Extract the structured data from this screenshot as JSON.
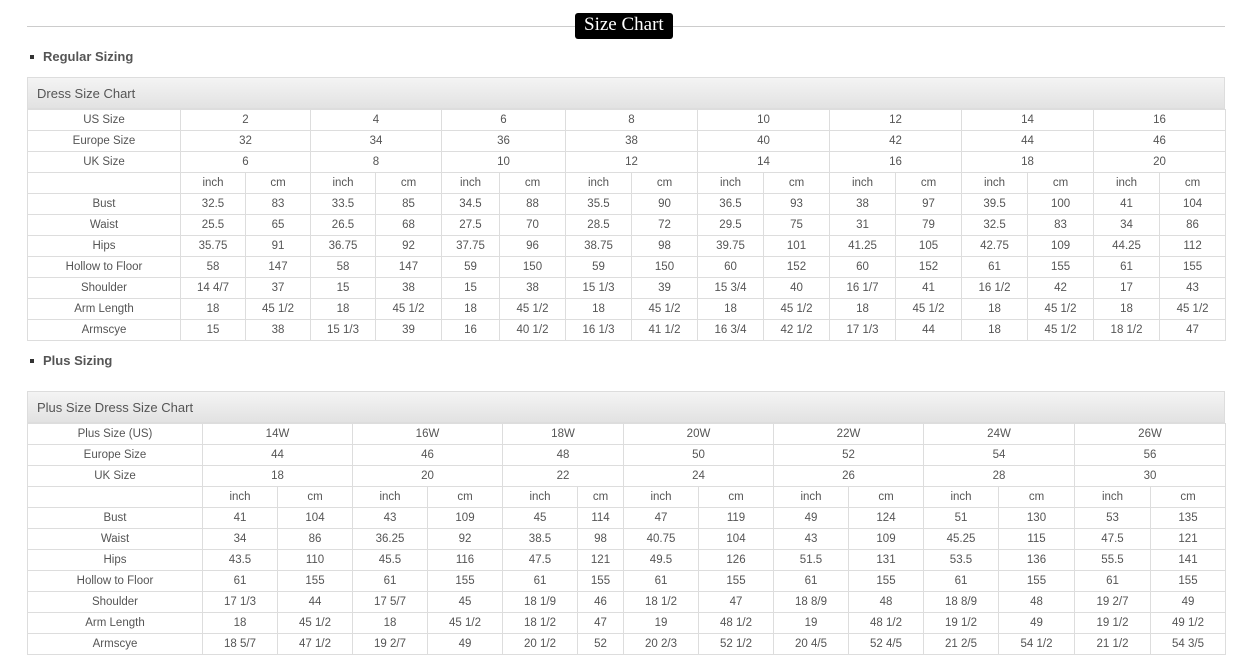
{
  "page_title": "Size Chart",
  "regular": {
    "heading": "Regular Sizing",
    "chart_title": "Dress Size Chart",
    "size_rows": [
      {
        "label": "US Size",
        "values": [
          "2",
          "4",
          "6",
          "8",
          "10",
          "12",
          "14",
          "16"
        ]
      },
      {
        "label": "Europe Size",
        "values": [
          "32",
          "34",
          "36",
          "38",
          "40",
          "42",
          "44",
          "46"
        ]
      },
      {
        "label": "UK Size",
        "values": [
          "6",
          "8",
          "10",
          "12",
          "14",
          "16",
          "18",
          "20"
        ]
      }
    ],
    "unit_inch": "inch",
    "unit_cm": "cm",
    "measure_rows": [
      {
        "label": "Bust",
        "values": [
          "32.5",
          "83",
          "33.5",
          "85",
          "34.5",
          "88",
          "35.5",
          "90",
          "36.5",
          "93",
          "38",
          "97",
          "39.5",
          "100",
          "41",
          "104"
        ]
      },
      {
        "label": "Waist",
        "values": [
          "25.5",
          "65",
          "26.5",
          "68",
          "27.5",
          "70",
          "28.5",
          "72",
          "29.5",
          "75",
          "31",
          "79",
          "32.5",
          "83",
          "34",
          "86"
        ]
      },
      {
        "label": "Hips",
        "values": [
          "35.75",
          "91",
          "36.75",
          "92",
          "37.75",
          "96",
          "38.75",
          "98",
          "39.75",
          "101",
          "41.25",
          "105",
          "42.75",
          "109",
          "44.25",
          "112"
        ]
      },
      {
        "label": "Hollow to Floor",
        "values": [
          "58",
          "147",
          "58",
          "147",
          "59",
          "150",
          "59",
          "150",
          "60",
          "152",
          "60",
          "152",
          "61",
          "155",
          "61",
          "155"
        ]
      },
      {
        "label": "Shoulder",
        "values": [
          "14 4/7",
          "37",
          "15",
          "38",
          "15",
          "38",
          "15 1/3",
          "39",
          "15 3/4",
          "40",
          "16 1/7",
          "41",
          "16 1/2",
          "42",
          "17",
          "43"
        ]
      },
      {
        "label": "Arm Length",
        "values": [
          "18",
          "45 1/2",
          "18",
          "45 1/2",
          "18",
          "45 1/2",
          "18",
          "45 1/2",
          "18",
          "45 1/2",
          "18",
          "45 1/2",
          "18",
          "45 1/2",
          "18",
          "45 1/2"
        ]
      },
      {
        "label": "Armscye",
        "values": [
          "15",
          "38",
          "15 1/3",
          "39",
          "16",
          "40 1/2",
          "16 1/3",
          "41 1/2",
          "16 3/4",
          "42 1/2",
          "17 1/3",
          "44",
          "18",
          "45 1/2",
          "18 1/2",
          "47"
        ]
      }
    ]
  },
  "plus": {
    "heading": "Plus Sizing",
    "chart_title": "Plus Size Dress Size Chart",
    "size_rows": [
      {
        "label": "Plus Size (US)",
        "values": [
          "14W",
          "16W",
          "18W",
          "20W",
          "22W",
          "24W",
          "26W"
        ]
      },
      {
        "label": "Europe Size",
        "values": [
          "44",
          "46",
          "48",
          "50",
          "52",
          "54",
          "56"
        ]
      },
      {
        "label": "UK Size",
        "values": [
          "18",
          "20",
          "22",
          "24",
          "26",
          "28",
          "30"
        ]
      }
    ],
    "unit_inch": "inch",
    "unit_cm": "cm",
    "measure_rows": [
      {
        "label": "Bust",
        "values": [
          "41",
          "104",
          "43",
          "109",
          "45",
          "114",
          "47",
          "119",
          "49",
          "124",
          "51",
          "130",
          "53",
          "135"
        ]
      },
      {
        "label": "Waist",
        "values": [
          "34",
          "86",
          "36.25",
          "92",
          "38.5",
          "98",
          "40.75",
          "104",
          "43",
          "109",
          "45.25",
          "115",
          "47.5",
          "121"
        ]
      },
      {
        "label": "Hips",
        "values": [
          "43.5",
          "110",
          "45.5",
          "116",
          "47.5",
          "121",
          "49.5",
          "126",
          "51.5",
          "131",
          "53.5",
          "136",
          "55.5",
          "141"
        ]
      },
      {
        "label": "Hollow to Floor",
        "values": [
          "61",
          "155",
          "61",
          "155",
          "61",
          "155",
          "61",
          "155",
          "61",
          "155",
          "61",
          "155",
          "61",
          "155"
        ]
      },
      {
        "label": "Shoulder",
        "values": [
          "17 1/3",
          "44",
          "17 5/7",
          "45",
          "18 1/9",
          "46",
          "18 1/2",
          "47",
          "18 8/9",
          "48",
          "18 8/9",
          "48",
          "19 2/7",
          "49"
        ]
      },
      {
        "label": "Arm Length",
        "values": [
          "18",
          "45 1/2",
          "18",
          "45 1/2",
          "18 1/2",
          "47",
          "19",
          "48 1/2",
          "19",
          "48 1/2",
          "19 1/2",
          "49",
          "19 1/2",
          "49 1/2"
        ]
      },
      {
        "label": "Armscye",
        "values": [
          "18 5/7",
          "47 1/2",
          "19 2/7",
          "49",
          "20 1/2",
          "52",
          "20 2/3",
          "52 1/2",
          "20 4/5",
          "52 4/5",
          "21 2/5",
          "54 1/2",
          "21 1/2",
          "54 3/5"
        ]
      }
    ]
  }
}
